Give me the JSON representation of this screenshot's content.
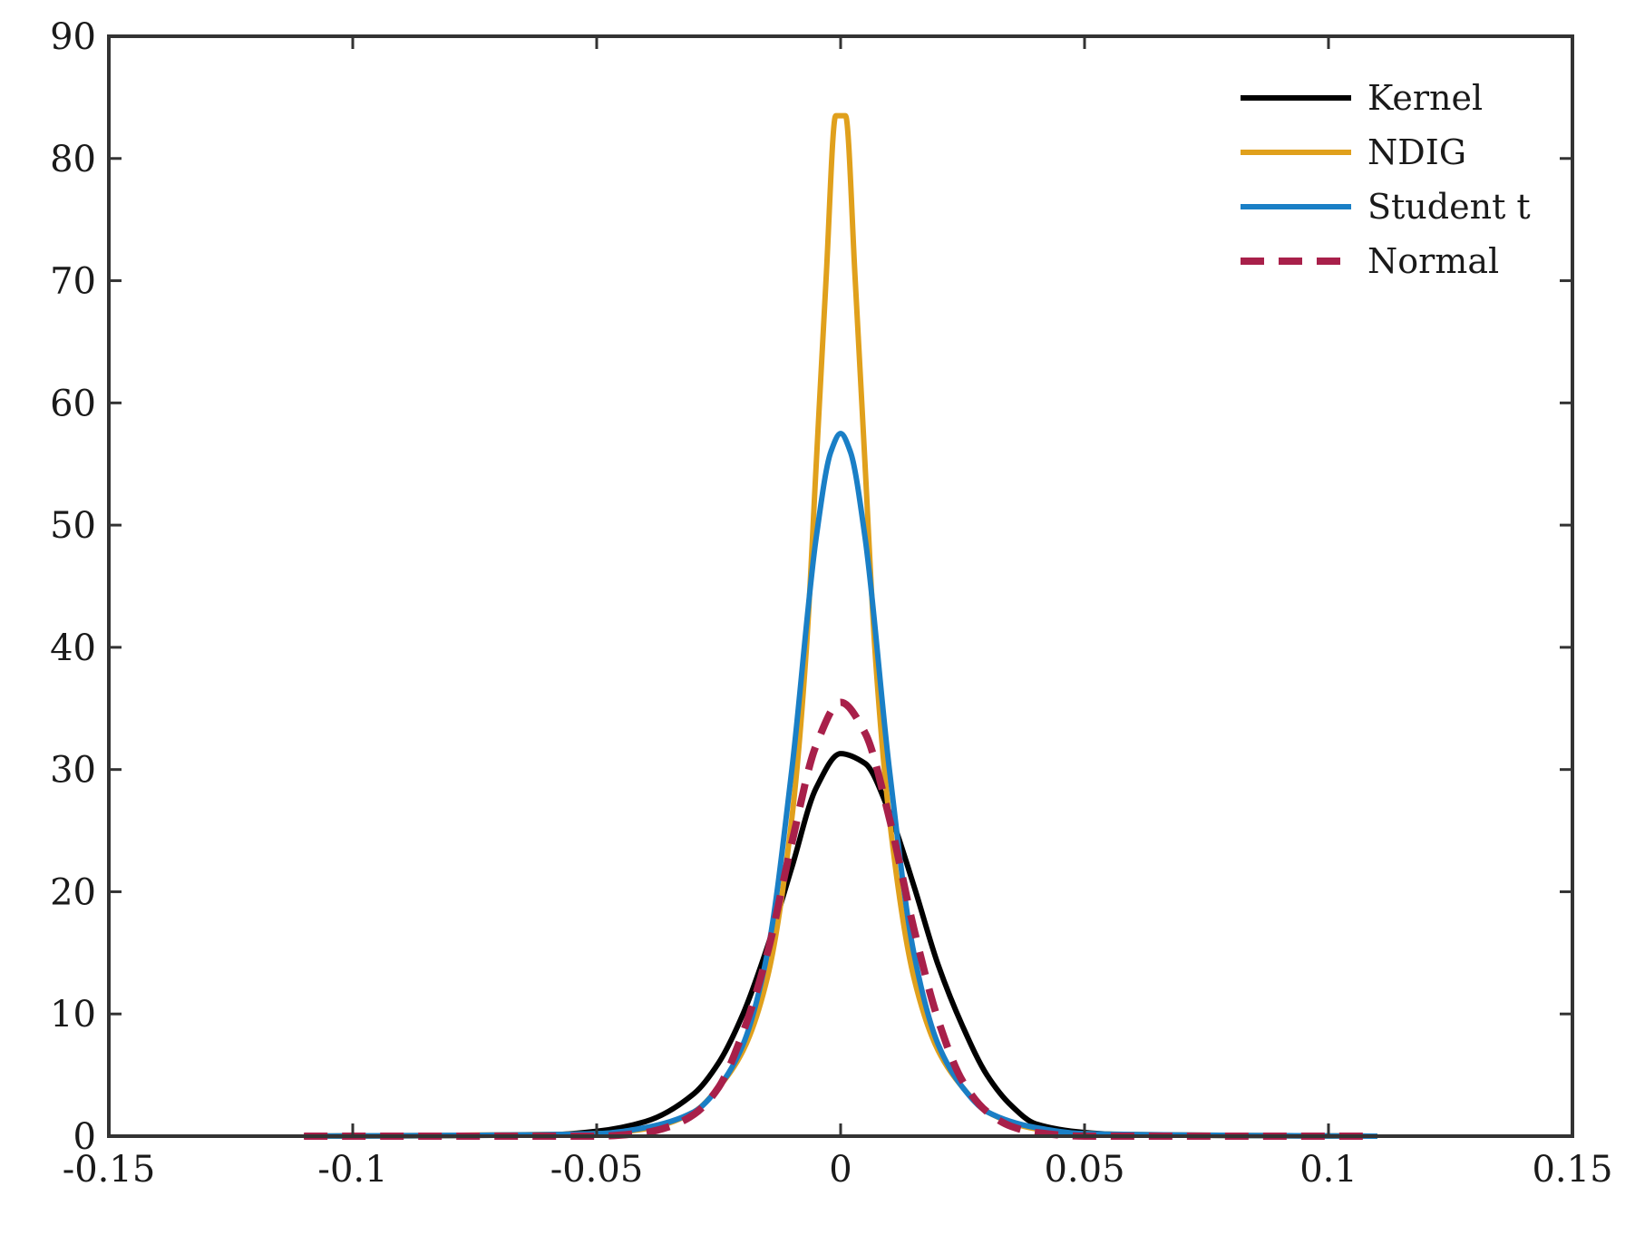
{
  "chart_data": {
    "type": "line",
    "xlim": [
      -0.15,
      0.15
    ],
    "ylim": [
      0,
      90
    ],
    "x_ticks": [
      -0.15,
      -0.1,
      -0.05,
      0,
      0.05,
      0.1,
      0.15
    ],
    "x_tick_labels": [
      "-0.15",
      "-0.1",
      "-0.05",
      "0",
      "0.05",
      "0.1",
      "0.15"
    ],
    "y_ticks": [
      0,
      10,
      20,
      30,
      40,
      50,
      60,
      70,
      80,
      90
    ],
    "y_tick_labels": [
      "0",
      "10",
      "20",
      "30",
      "40",
      "50",
      "60",
      "70",
      "80",
      "90"
    ],
    "grid": false,
    "legend_position": "top-right",
    "series": [
      {
        "name": "Kernel",
        "color": "#000000",
        "style": "solid",
        "x": [
          -0.11,
          -0.06,
          -0.05,
          -0.04,
          -0.03,
          -0.025,
          -0.02,
          -0.015,
          -0.01,
          -0.005,
          0,
          0.005,
          0.01,
          0.015,
          0.02,
          0.025,
          0.03,
          0.035,
          0.04,
          0.05,
          0.06,
          0.11
        ],
        "y": [
          0,
          0.1,
          0.4,
          1.2,
          3.5,
          6,
          10,
          15.5,
          22,
          28.5,
          31.3,
          30.5,
          26.5,
          20.5,
          14,
          9,
          5,
          2.5,
          1,
          0.3,
          0.1,
          0
        ]
      },
      {
        "name": "NDIG",
        "color": "#E0A01C",
        "style": "solid",
        "x": [
          -0.11,
          -0.05,
          -0.04,
          -0.03,
          -0.025,
          -0.02,
          -0.015,
          -0.01,
          -0.007,
          -0.005,
          -0.003,
          -0.001,
          0.001,
          0.003,
          0.005,
          0.007,
          0.01,
          0.015,
          0.02,
          0.025,
          0.03,
          0.04,
          0.05,
          0.11
        ],
        "y": [
          0,
          0.2,
          0.6,
          2,
          4,
          7,
          13,
          26,
          40,
          55,
          70,
          83.5,
          83.5,
          70,
          55,
          40,
          26,
          13,
          7,
          4,
          2,
          0.6,
          0.2,
          0
        ]
      },
      {
        "name": "Student t",
        "color": "#1A7FC6",
        "style": "solid",
        "x": [
          -0.11,
          -0.05,
          -0.04,
          -0.03,
          -0.025,
          -0.02,
          -0.015,
          -0.01,
          -0.005,
          -0.002,
          0,
          0.002,
          0.005,
          0.01,
          0.015,
          0.02,
          0.025,
          0.03,
          0.04,
          0.05,
          0.11
        ],
        "y": [
          0,
          0.2,
          0.7,
          2,
          4,
          7.5,
          15,
          30,
          49,
          56,
          57.5,
          56,
          49,
          30,
          15,
          7.5,
          4,
          2,
          0.7,
          0.2,
          0
        ]
      },
      {
        "name": "Normal",
        "color": "#A8204A",
        "style": "dashed",
        "x": [
          -0.11,
          -0.05,
          -0.04,
          -0.035,
          -0.03,
          -0.025,
          -0.02,
          -0.015,
          -0.01,
          -0.005,
          0,
          0.005,
          0.01,
          0.015,
          0.02,
          0.025,
          0.03,
          0.035,
          0.04,
          0.05,
          0.11
        ],
        "y": [
          0,
          0,
          0.3,
          0.8,
          1.8,
          4,
          8.5,
          15,
          24,
          32,
          35.5,
          33,
          26,
          17,
          9.5,
          4.5,
          2,
          0.8,
          0.3,
          0,
          0
        ]
      }
    ]
  }
}
